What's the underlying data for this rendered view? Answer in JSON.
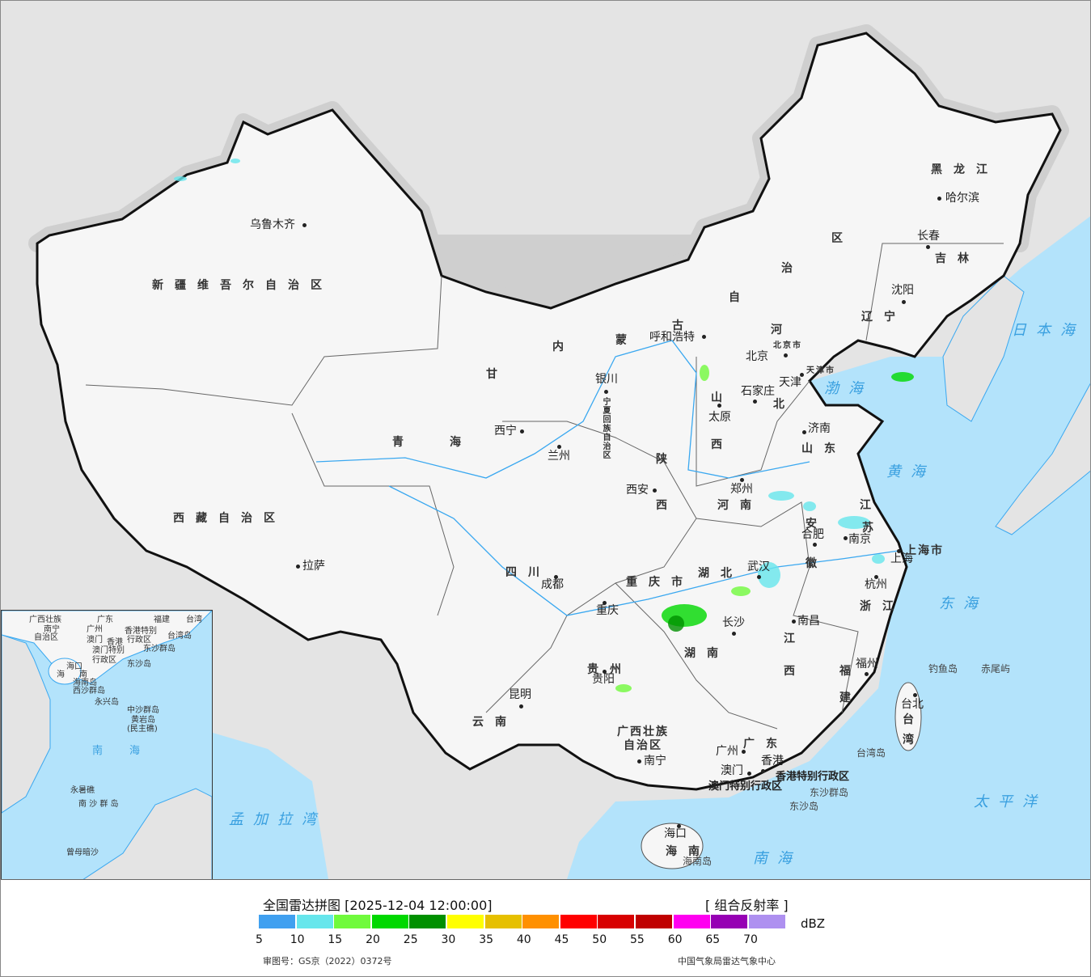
{
  "legend": {
    "title": "全国雷达拼图 [2025-12-04 12:00:00]",
    "product": "[ 组合反射率 ]",
    "unit": "dBZ",
    "ticks": [
      "5",
      "10",
      "15",
      "20",
      "25",
      "30",
      "35",
      "40",
      "45",
      "50",
      "55",
      "60",
      "65",
      "70"
    ],
    "colors": [
      "#40a0f0",
      "#66e6ec",
      "#70fa3c",
      "#00d800",
      "#009000",
      "#ffff00",
      "#e6c000",
      "#ff9000",
      "#ff0000",
      "#d80000",
      "#c00000",
      "#ff00f0",
      "#9600b4",
      "#ae90f0"
    ],
    "approval": "审图号：GS京（2022）0372号",
    "source": "中国气象局雷达气象中心"
  },
  "map": {
    "colors": {
      "land": "#f6f6f6",
      "sea": "#b3e3fb",
      "outside": "#e4e4e4",
      "border": "#111111",
      "river": "#3aa8f0"
    },
    "cities": [
      "乌鲁木齐",
      "拉萨",
      "西宁",
      "兰州",
      "银川",
      "呼和浩特",
      "北京",
      "天津",
      "石家庄",
      "太原",
      "济南",
      "郑州",
      "西安",
      "合肥",
      "南京",
      "上海",
      "杭州",
      "武汉",
      "成都",
      "重庆",
      "长沙",
      "南昌",
      "贵阳",
      "昆明",
      "福州",
      "台北",
      "南宁",
      "广州",
      "澳门",
      "香港",
      "海口",
      "哈尔滨",
      "长春",
      "沈阳"
    ],
    "provinces": [
      "新疆维吾尔自治区",
      "西藏自治区",
      "青",
      "海",
      "甘",
      "内",
      "蒙",
      "古",
      "自",
      "治",
      "区",
      "黑龙江",
      "吉林",
      "辽宁",
      "河",
      "北",
      "山",
      "西",
      "山东",
      "陕",
      "西",
      "河南",
      "江",
      "苏",
      "安",
      "徽",
      "湖北",
      "四川",
      "重庆市",
      "贵州",
      "云南",
      "湖南",
      "江",
      "西",
      "浙江",
      "福",
      "建",
      "广东",
      "广西壮族",
      "自治区",
      "海南",
      "台",
      "湾",
      "上海市",
      "北京市",
      "天津市",
      "宁夏回族自治区"
    ],
    "seas": [
      "渤海",
      "黄海",
      "东海",
      "南海",
      "太平洋",
      "日本海",
      "孟加拉湾"
    ],
    "islands": [
      "钓鱼岛",
      "赤尾屿",
      "台湾岛",
      "东沙群岛",
      "东沙岛",
      "海南岛",
      "香港特别行政区",
      "澳门特别行政区"
    ],
    "inset_labels": [
      "广西壮族",
      "南宁",
      "自治区",
      "广东",
      "福建",
      "台湾",
      "广州",
      "香港特别",
      "行政区",
      "澳门",
      "香港",
      "澳门特别",
      "行政区",
      "台湾岛",
      "东沙群岛",
      "东沙岛",
      "海口",
      "海",
      "南",
      "海南岛",
      "西沙群岛",
      "永兴岛",
      "中沙群岛",
      "黄岩岛",
      "(民主礁)",
      "南",
      "海",
      "永暑礁",
      "南 沙 群 岛",
      "曾母暗沙"
    ]
  }
}
